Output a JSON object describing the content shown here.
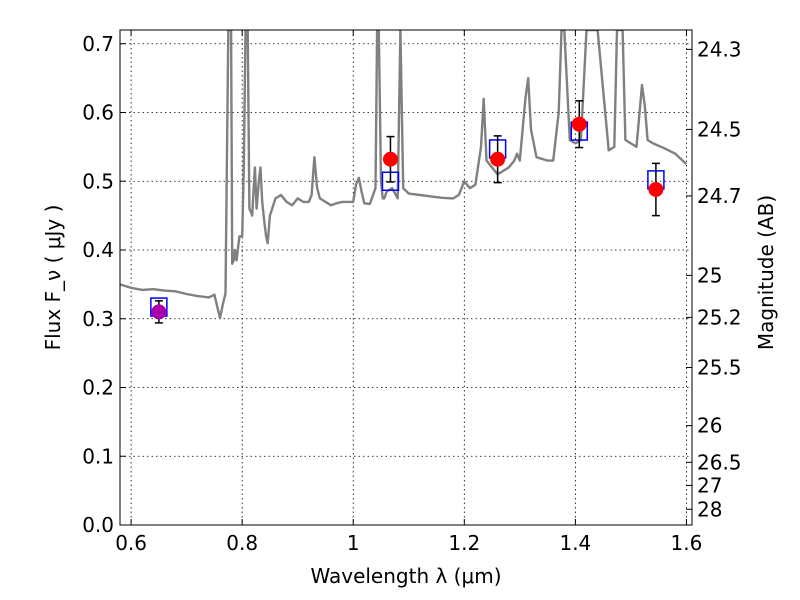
{
  "chart_data": {
    "type": "scatter",
    "title": "",
    "xlabel": "Wavelength λ (μm)",
    "ylabel": "Flux F_ν ( μJy )",
    "y2label": "Magnitude (AB)",
    "xlim": [
      0.58,
      1.61
    ],
    "ylim": [
      0.0,
      0.72
    ],
    "grid": true,
    "x_ticks": [
      "0.6",
      "0.8",
      "1",
      "1.2",
      "1.4",
      "1.6"
    ],
    "y_ticks": [
      "0.0",
      "0.1",
      "0.2",
      "0.3",
      "0.4",
      "0.5",
      "0.6",
      "0.7"
    ],
    "y2_ticks": [
      "24.3",
      "24.5",
      "24.7",
      "25",
      "25.2",
      "25.5",
      "26",
      "26.5",
      "27",
      "28"
    ],
    "series": [
      {
        "kind": "line",
        "color": "#808080",
        "x": [
          0.58,
          0.6,
          0.62,
          0.64,
          0.66,
          0.68,
          0.7,
          0.72,
          0.74,
          0.75,
          0.76,
          0.765,
          0.77,
          0.775,
          0.78,
          0.782,
          0.785,
          0.787,
          0.79,
          0.795,
          0.8,
          0.803,
          0.806,
          0.81,
          0.813,
          0.816,
          0.818,
          0.82,
          0.823,
          0.826,
          0.83,
          0.833,
          0.836,
          0.84,
          0.843,
          0.846,
          0.85,
          0.86,
          0.87,
          0.88,
          0.89,
          0.9,
          0.91,
          0.92,
          0.925,
          0.93,
          0.935,
          0.94,
          0.95,
          0.96,
          0.97,
          0.98,
          0.99,
          1.0,
          1.005,
          1.01,
          1.015,
          1.02,
          1.03,
          1.04,
          1.043,
          1.046,
          1.05,
          1.053,
          1.056,
          1.06,
          1.07,
          1.08,
          1.085,
          1.09,
          1.1,
          1.12,
          1.14,
          1.16,
          1.18,
          1.19,
          1.2,
          1.21,
          1.22,
          1.23,
          1.235,
          1.24,
          1.26,
          1.28,
          1.29,
          1.295,
          1.3,
          1.31,
          1.315,
          1.32,
          1.33,
          1.35,
          1.36,
          1.37,
          1.375,
          1.38,
          1.39,
          1.4,
          1.41,
          1.42,
          1.44,
          1.46,
          1.47,
          1.475,
          1.48,
          1.485,
          1.49,
          1.5,
          1.51,
          1.52,
          1.525,
          1.53,
          1.54,
          1.56,
          1.58,
          1.6
        ],
        "y": [
          0.35,
          0.345,
          0.342,
          0.343,
          0.341,
          0.34,
          0.336,
          0.333,
          0.331,
          0.335,
          0.301,
          0.32,
          0.337,
          0.72,
          0.72,
          0.38,
          0.385,
          0.4,
          0.385,
          0.42,
          0.42,
          0.52,
          0.72,
          0.72,
          0.46,
          0.455,
          0.45,
          0.48,
          0.52,
          0.46,
          0.5,
          0.52,
          0.47,
          0.44,
          0.42,
          0.41,
          0.45,
          0.475,
          0.48,
          0.47,
          0.465,
          0.475,
          0.47,
          0.47,
          0.48,
          0.535,
          0.49,
          0.475,
          0.47,
          0.465,
          0.468,
          0.47,
          0.47,
          0.47,
          0.495,
          0.505,
          0.485,
          0.468,
          0.467,
          0.49,
          0.72,
          0.72,
          0.5,
          0.475,
          0.475,
          0.485,
          0.49,
          0.475,
          0.72,
          0.49,
          0.482,
          0.48,
          0.478,
          0.476,
          0.475,
          0.48,
          0.5,
          0.49,
          0.495,
          0.55,
          0.62,
          0.53,
          0.51,
          0.52,
          0.53,
          0.54,
          0.53,
          0.62,
          0.65,
          0.575,
          0.535,
          0.53,
          0.53,
          0.6,
          0.72,
          0.72,
          0.56,
          0.555,
          0.56,
          0.72,
          0.72,
          0.545,
          0.55,
          0.72,
          0.72,
          0.72,
          0.56,
          0.555,
          0.55,
          0.64,
          0.61,
          0.56,
          0.555,
          0.548,
          0.54,
          0.525
        ]
      },
      {
        "kind": "model-boxes",
        "color": "#0000ff",
        "x": [
          0.65,
          1.067,
          1.26,
          1.407,
          1.545
        ],
        "y": [
          0.317,
          0.5,
          0.547,
          0.573,
          0.502
        ]
      },
      {
        "kind": "observed-points",
        "color": "#ff0000",
        "x": [
          0.65,
          1.067,
          1.26,
          1.407,
          1.545
        ],
        "y": [
          0.31,
          0.532,
          0.532,
          0.583,
          0.488
        ],
        "err": [
          0.016,
          0.033,
          0.034,
          0.034,
          0.038
        ],
        "colors": [
          "#aa00aa",
          "#ff0000",
          "#ff0000",
          "#ff0000",
          "#ff0000"
        ]
      }
    ]
  }
}
